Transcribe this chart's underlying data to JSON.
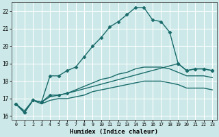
{
  "xlabel": "Humidex (Indice chaleur)",
  "bg_color": "#cce8e8",
  "grid_color": "#ffffff",
  "line_color": "#1a6b6b",
  "xlim": [
    -0.5,
    23.5
  ],
  "ylim": [
    15.8,
    22.5
  ],
  "xticks": [
    0,
    1,
    2,
    3,
    4,
    5,
    6,
    7,
    8,
    9,
    10,
    11,
    12,
    13,
    14,
    15,
    16,
    17,
    18,
    19,
    20,
    21,
    22,
    23
  ],
  "yticks": [
    16,
    17,
    18,
    19,
    20,
    21,
    22
  ],
  "series": [
    {
      "x": [
        0,
        1,
        2,
        3,
        4,
        5,
        6,
        7,
        8,
        9,
        10,
        11,
        12,
        13,
        14,
        15,
        16,
        17,
        18,
        19,
        20,
        21,
        22,
        23
      ],
      "y": [
        16.7,
        16.2,
        16.9,
        16.8,
        18.3,
        18.3,
        18.6,
        18.8,
        19.4,
        20.0,
        20.5,
        21.1,
        21.4,
        21.8,
        22.2,
        22.2,
        21.5,
        21.4,
        20.8,
        19.0,
        18.6,
        18.7,
        18.7,
        18.6
      ],
      "marker": "D",
      "markersize": 2.5,
      "linewidth": 1.0,
      "has_marker": true
    },
    {
      "x": [
        0,
        1,
        2,
        3,
        4,
        5,
        6,
        19,
        20,
        21,
        22,
        23
      ],
      "y": [
        16.7,
        16.2,
        16.9,
        16.8,
        17.2,
        17.2,
        17.3,
        19.0,
        18.6,
        18.7,
        18.7,
        18.6
      ],
      "marker": "D",
      "markersize": 2.5,
      "linewidth": 1.0,
      "has_marker": true
    },
    {
      "x": [
        0,
        1,
        2,
        3,
        4,
        5,
        6,
        7,
        8,
        9,
        10,
        11,
        12,
        13,
        14,
        15,
        16,
        17,
        18,
        19,
        20,
        21,
        22,
        23
      ],
      "y": [
        16.7,
        16.3,
        16.9,
        16.8,
        17.1,
        17.2,
        17.3,
        17.5,
        17.7,
        17.9,
        18.1,
        18.2,
        18.4,
        18.5,
        18.7,
        18.8,
        18.8,
        18.8,
        18.7,
        18.5,
        18.3,
        18.3,
        18.3,
        18.2
      ],
      "marker": null,
      "markersize": 0,
      "linewidth": 1.0,
      "has_marker": false
    },
    {
      "x": [
        0,
        1,
        2,
        3,
        4,
        5,
        6,
        7,
        8,
        9,
        10,
        11,
        12,
        13,
        14,
        15,
        16,
        17,
        18,
        19,
        20,
        21,
        22,
        23
      ],
      "y": [
        16.7,
        16.2,
        16.9,
        16.7,
        16.9,
        17.0,
        17.0,
        17.1,
        17.2,
        17.4,
        17.5,
        17.6,
        17.7,
        17.8,
        17.9,
        18.0,
        18.0,
        18.0,
        17.9,
        17.8,
        17.6,
        17.6,
        17.6,
        17.5
      ],
      "marker": null,
      "markersize": 0,
      "linewidth": 1.0,
      "has_marker": false
    }
  ]
}
